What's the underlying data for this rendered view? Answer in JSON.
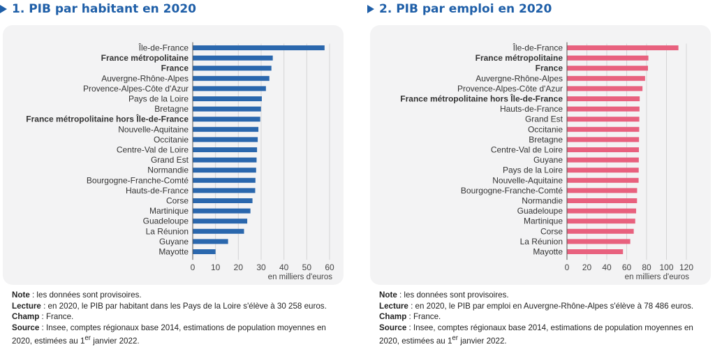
{
  "colors": {
    "title": "#1f5fa8",
    "left_bar": "#2a67ad",
    "right_bar": "#e8617e"
  },
  "charts": [
    {
      "title": "1. PIB par habitant en 2020",
      "unit_label": "en milliers d'euros",
      "notes": {
        "note_label": "Note",
        "note_text": " : les données sont provisoires.",
        "lecture_label": "Lecture",
        "lecture_text": " : en 2020, le PIB par habitant dans les Pays de la Loire s'élève à 30 258 euros.",
        "champ_label": "Champ",
        "champ_text": " : France.",
        "source_label": "Source",
        "source_text": " : Insee, comptes régionaux base 2014, estimations de population moyennes en 2020, estimées au ",
        "source_sup_base": "1",
        "source_sup": "er",
        "source_end": " janvier 2022."
      }
    },
    {
      "title": "2. PIB par emploi en 2020",
      "unit_label": "en milliers d'euros",
      "notes": {
        "note_label": "Note",
        "note_text": " : les données sont provisoires.",
        "lecture_label": "Lecture",
        "lecture_text": " : en 2020, le PIB par emploi en Auvergne-Rhône-Alpes s'élève à 78 486 euros.",
        "champ_label": "Champ",
        "champ_text": " : France.",
        "source_label": "Source",
        "source_text": " : Insee, comptes régionaux base 2014, estimations de population moyennes en 2020, estimées au ",
        "source_sup_base": "1",
        "source_sup": "er",
        "source_end": " janvier 2022."
      }
    }
  ],
  "chart_data": [
    {
      "type": "bar",
      "orientation": "horizontal",
      "title": "1. PIB par habitant en 2020",
      "xlabel": "en milliers d'euros",
      "xlim": [
        0,
        60
      ],
      "ticks": [
        0,
        10,
        20,
        30,
        40,
        50,
        60
      ],
      "grid": true,
      "categories": [
        "Île-de-France",
        "France métropolitaine",
        "France",
        "Auvergne-Rhône-Alpes",
        "Provence-Alpes-Côte d'Azur",
        "Pays de la Loire",
        "Bretagne",
        "France métropolitaine hors Île-de-France",
        "Nouvelle-Aquitaine",
        "Occitanie",
        "Centre-Val de Loire",
        "Grand Est",
        "Normandie",
        "Bourgogne-Franche-Comté",
        "Hauts-de-France",
        "Corse",
        "Martinique",
        "Guadeloupe",
        "La Réunion",
        "Guyane",
        "Mayotte"
      ],
      "bold": [
        "France métropolitaine",
        "France",
        "France métropolitaine hors Île-de-France"
      ],
      "values": [
        57.8,
        35.1,
        34.5,
        33.6,
        32.1,
        30.3,
        29.9,
        29.6,
        28.8,
        28.5,
        28.2,
        28.0,
        27.8,
        27.5,
        27.4,
        26.2,
        25.3,
        23.9,
        22.5,
        15.5,
        10.0
      ]
    },
    {
      "type": "bar",
      "orientation": "horizontal",
      "title": "2. PIB par emploi en 2020",
      "xlabel": "en milliers d'euros",
      "xlim": [
        0,
        120
      ],
      "ticks": [
        0,
        20,
        40,
        60,
        80,
        100,
        120
      ],
      "grid": true,
      "categories": [
        "Île-de-France",
        "France métropolitaine",
        "France",
        "Auvergne-Rhône-Alpes",
        "Provence-Alpes-Côte d'Azur",
        "France métropolitaine hors Île-de-France",
        "Hauts-de-France",
        "Grand Est",
        "Occitanie",
        "Bretagne",
        "Centre-Val de Loire",
        "Guyane",
        "Pays de la Loire",
        "Nouvelle-Aquitaine",
        "Bourgogne-Franche-Comté",
        "Normandie",
        "Guadeloupe",
        "Martinique",
        "Corse",
        "La Réunion",
        "Mayotte"
      ],
      "bold": [
        "France métropolitaine",
        "France",
        "France métropolitaine hors Île-de-France"
      ],
      "values": [
        112.0,
        81.8,
        81.4,
        78.5,
        75.9,
        73.1,
        72.9,
        72.7,
        72.6,
        72.4,
        72.3,
        72.2,
        72.1,
        72.0,
        70.5,
        70.4,
        69.5,
        68.6,
        67.1,
        63.6,
        56.3
      ]
    }
  ]
}
